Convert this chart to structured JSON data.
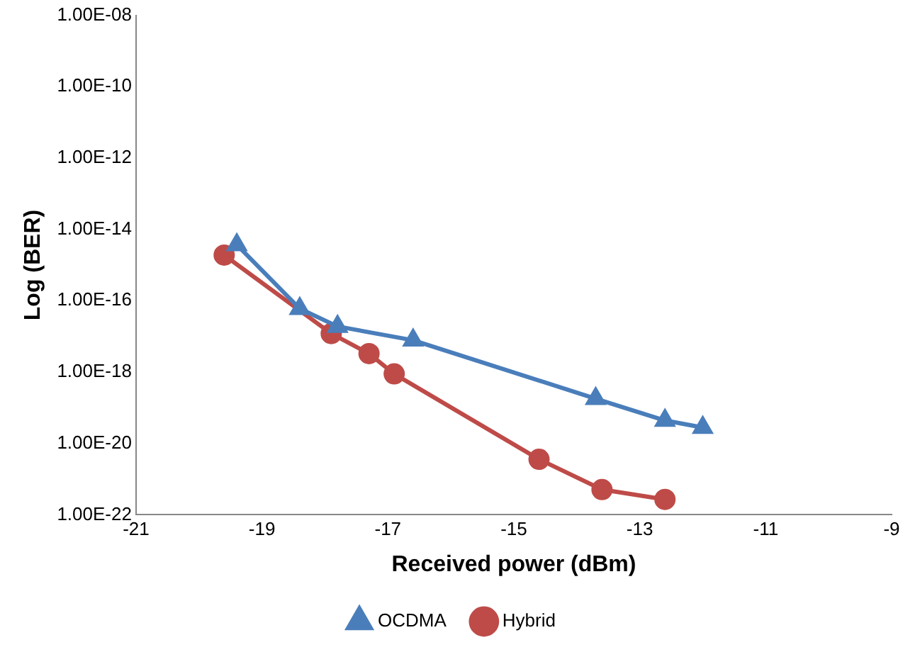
{
  "chart_data": {
    "type": "line",
    "xlabel": "Received power (dBm)",
    "ylabel": "Log (BER)",
    "log": "y",
    "grid": false,
    "legend": "bottom",
    "line_style": "solid",
    "xlim": [
      -21,
      -9
    ],
    "xticks": [
      -21,
      -19,
      -17,
      -15,
      -13,
      -11,
      -9
    ],
    "ylim": [
      1e-22,
      1e-08
    ],
    "yticks": [
      {
        "value": 1e-22,
        "label": "1.00E-22"
      },
      {
        "value": 1e-20,
        "label": "1.00E-20"
      },
      {
        "value": 1e-18,
        "label": "1.00E-18"
      },
      {
        "value": 1e-16,
        "label": "1.00E-16"
      },
      {
        "value": 1e-14,
        "label": "1.00E-14"
      },
      {
        "value": 1e-12,
        "label": "1.00E-12"
      },
      {
        "value": 1e-10,
        "label": "1.00E-10"
      },
      {
        "value": 1e-08,
        "label": "1.00E-08"
      }
    ],
    "series": [
      {
        "name": "OCDMA",
        "color": "#4a7ebb",
        "marker": "triangle",
        "x": [
          -19.4,
          -18.4,
          -17.8,
          -16.6,
          -13.7,
          -12.6,
          -12.0
        ],
        "values": [
          3.7e-15,
          6e-17,
          1.9e-17,
          7.8e-18,
          1.8e-19,
          4.4e-20,
          2.8e-20
        ]
      },
      {
        "name": "Hybrid",
        "color": "#be4b48",
        "marker": "circle",
        "x": [
          -19.6,
          -17.9,
          -17.3,
          -16.9,
          -14.6,
          -13.6,
          -12.6
        ],
        "values": [
          1.9e-15,
          1.2e-17,
          3.3e-18,
          8.9e-19,
          3.6e-21,
          5.1e-22,
          2.7e-22
        ]
      }
    ]
  }
}
